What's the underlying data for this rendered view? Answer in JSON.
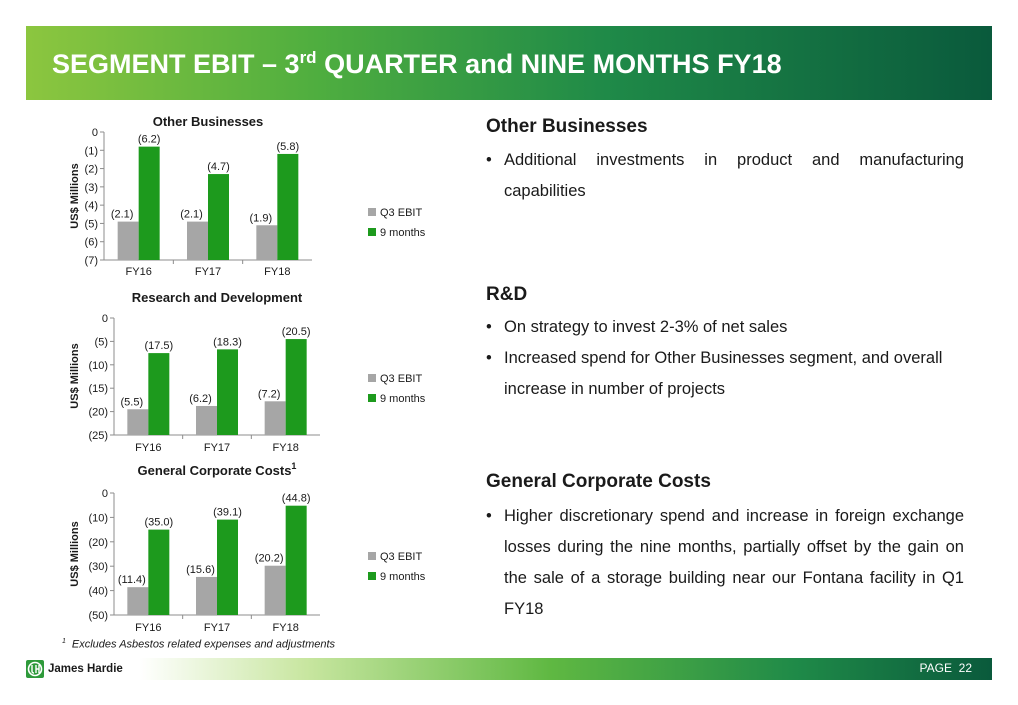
{
  "title": {
    "main": "SEGMENT EBIT – 3",
    "sup": "rd",
    "rest": " QUARTER and NINE MONTHS FY18"
  },
  "colors": {
    "q3": "#a6a6a6",
    "nine_months": "#1d9a1d",
    "banner_dark": "#0a5a3c",
    "banner_light": "#8cc63f"
  },
  "chart_data": [
    {
      "type": "bar",
      "title": "Other Businesses",
      "ylabel": "US$ Millions",
      "categories": [
        "FY16",
        "FY17",
        "FY18"
      ],
      "series": [
        {
          "name": "Q3 EBIT",
          "values": [
            -2.1,
            -2.1,
            -1.9
          ],
          "labels": [
            "(2.1)",
            "(2.1)",
            "(1.9)"
          ]
        },
        {
          "name": "9 months",
          "values": [
            -6.2,
            -4.7,
            -5.8
          ],
          "labels": [
            "(6.2)",
            "(4.7)",
            "(5.8)"
          ]
        }
      ],
      "ylim": [
        -7,
        0
      ],
      "yticks": [
        0,
        -1,
        -2,
        -3,
        -4,
        -5,
        -6,
        -7
      ],
      "ytick_labels": [
        "0",
        "(1)",
        "(2)",
        "(3)",
        "(4)",
        "(5)",
        "(6)",
        "(7)"
      ],
      "legend_position": "right",
      "grid": false
    },
    {
      "type": "bar",
      "title": "Research and Development",
      "ylabel": "US$ Millions",
      "categories": [
        "FY16",
        "FY17",
        "FY18"
      ],
      "series": [
        {
          "name": "Q3 EBIT",
          "values": [
            -5.5,
            -6.2,
            -7.2
          ],
          "labels": [
            "(5.5)",
            "(6.2)",
            "(7.2)"
          ]
        },
        {
          "name": "9 months",
          "values": [
            -17.5,
            -18.3,
            -20.5
          ],
          "labels": [
            "(17.5)",
            "(18.3)",
            "(20.5)"
          ]
        }
      ],
      "ylim": [
        -25,
        0
      ],
      "yticks": [
        0,
        -5,
        -10,
        -15,
        -20,
        -25
      ],
      "ytick_labels": [
        "0",
        "(5)",
        "(10)",
        "(15)",
        "(20)",
        "(25)"
      ],
      "legend_position": "right",
      "grid": false
    },
    {
      "type": "bar",
      "title": "General Corporate Costs",
      "title_sup": "1",
      "ylabel": "US$ Millions",
      "categories": [
        "FY16",
        "FY17",
        "FY18"
      ],
      "series": [
        {
          "name": "Q3 EBIT",
          "values": [
            -11.4,
            -15.6,
            -20.2
          ],
          "labels": [
            "(11.4)",
            "(15.6)",
            "(20.2)"
          ]
        },
        {
          "name": "9 months",
          "values": [
            -35.0,
            -39.1,
            -44.8
          ],
          "labels": [
            "(35.0)",
            "(39.1)",
            "(44.8)"
          ]
        }
      ],
      "ylim": [
        -50,
        0
      ],
      "yticks": [
        0,
        -10,
        -20,
        -30,
        -40,
        -50
      ],
      "ytick_labels": [
        "0",
        "(10)",
        "(20)",
        "(30)",
        "(40)",
        "(50)"
      ],
      "legend_position": "right",
      "grid": false
    }
  ],
  "sections": {
    "other": {
      "heading": "Other Businesses",
      "bullets": [
        "Additional investments in product and manufacturing capabilities"
      ]
    },
    "rd": {
      "heading": "R&D",
      "bullets": [
        "On strategy to invest 2-3% of net sales",
        "Increased spend for Other Businesses segment, and overall increase in number of projects"
      ]
    },
    "gcc": {
      "heading": "General Corporate Costs",
      "bullets": [
        "Higher discretionary spend and increase in foreign exchange losses during the nine months, partially offset by the gain on the sale of a storage building near our Fontana facility in Q1 FY18"
      ]
    }
  },
  "footnote": {
    "marker": "1",
    "text": "Excludes Asbestos related expenses and adjustments"
  },
  "logo": {
    "text": "James Hardie",
    "icon": "james-hardie-logo-mark"
  },
  "page": {
    "label": "PAGE",
    "number": "22"
  }
}
